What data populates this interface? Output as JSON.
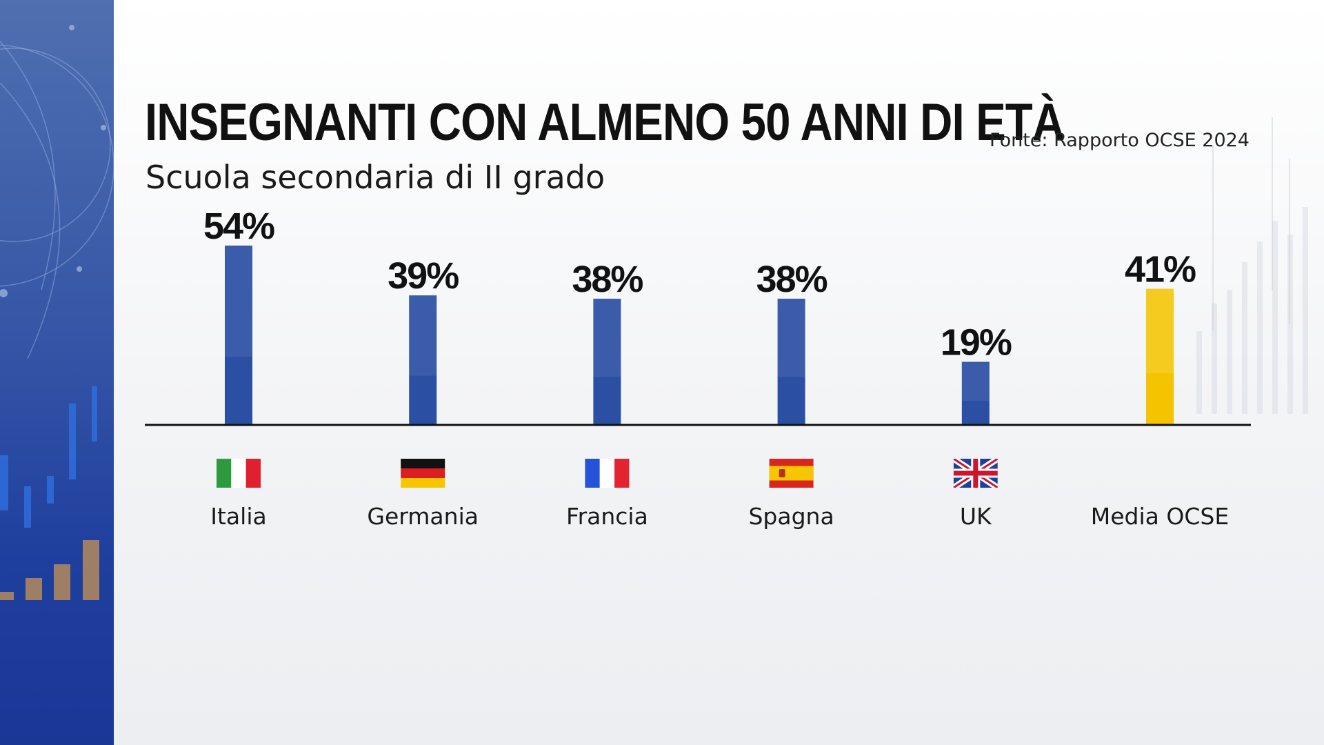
{
  "header": {
    "title": "INSEGNANTI CON ALMENO 50 ANNI DI ETÀ",
    "subtitle": "Scuola secondaria di II grado",
    "source": "Fonte: Rapporto OCSE 2024"
  },
  "colors": {
    "bar_main": "#2b4fa3",
    "bar_highlight": "#f5c400",
    "side_panel": "#2a4aa3",
    "axis": "#111111"
  },
  "chart_data": {
    "type": "bar",
    "categories": [
      "Italia",
      "Germania",
      "Francia",
      "Spagna",
      "UK",
      "Media OCSE"
    ],
    "values": [
      54,
      39,
      38,
      38,
      19,
      41
    ],
    "value_labels": [
      "54%",
      "39%",
      "38%",
      "38%",
      "19%",
      "41%"
    ],
    "unit": "%",
    "flags": [
      "italy-flag-icon",
      "germany-flag-icon",
      "france-flag-icon",
      "spain-flag-icon",
      "uk-flag-icon",
      ""
    ],
    "highlight_category": "Media OCSE",
    "ylim": [
      0,
      54
    ],
    "grid": false,
    "legend": "none"
  }
}
